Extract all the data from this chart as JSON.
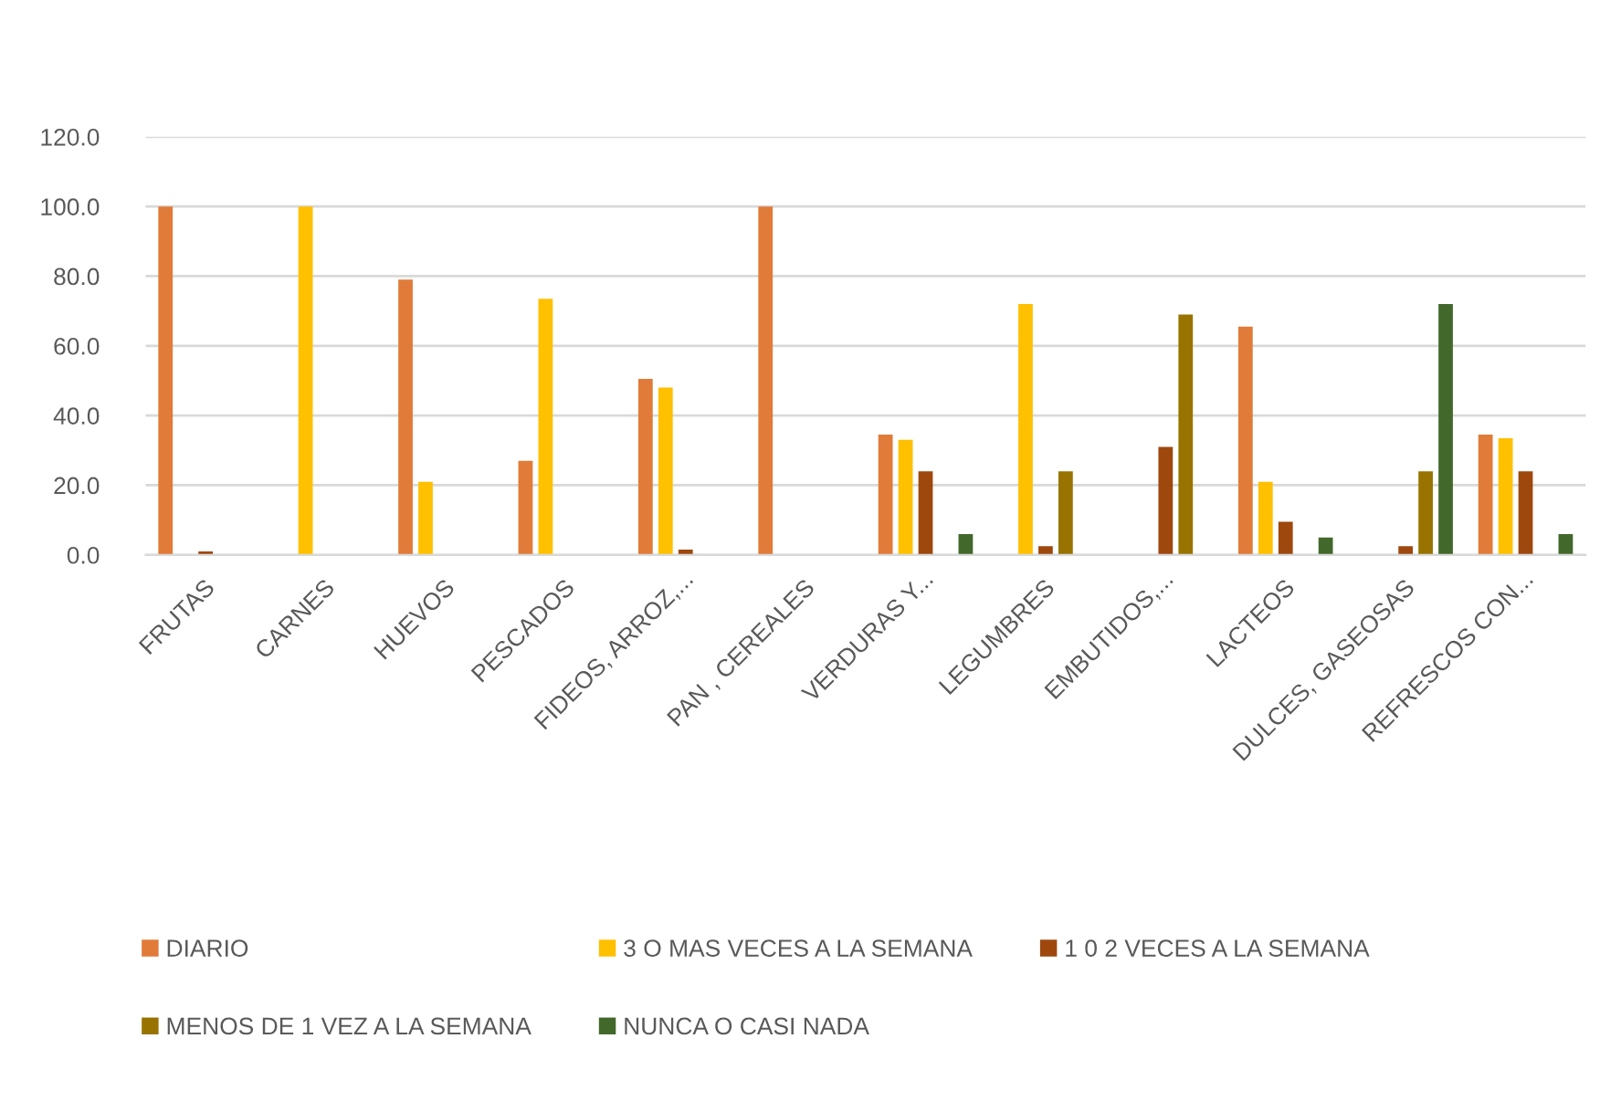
{
  "chart_data": {
    "type": "bar",
    "categories": [
      "FRUTAS",
      "CARNES",
      "HUEVOS",
      "PESCADOS",
      "FIDEOS, ARROZ,...",
      "PAN , CEREALES",
      "VERDURAS Y...",
      "LEGUMBRES",
      "EMBUTIDOS,...",
      "LACTEOS",
      "DULCES, GASEOSAS",
      "REFRESCOS CON..."
    ],
    "series": [
      {
        "name": "DIARIO",
        "color": "#e07b39",
        "values": [
          100,
          null,
          79,
          27,
          50.5,
          100,
          34.5,
          null,
          null,
          65.5,
          null,
          34.5
        ]
      },
      {
        "name": "3 O MAS VECES A LA SEMANA",
        "color": "#ffc000",
        "values": [
          null,
          100,
          21,
          73.5,
          48,
          null,
          33,
          72,
          null,
          21,
          null,
          33.5
        ]
      },
      {
        "name": "1 0 2 VECES A LA SEMANA",
        "color": "#9e480e",
        "values": [
          1,
          null,
          null,
          null,
          1.5,
          null,
          24,
          2.5,
          31,
          9.5,
          2.5,
          24
        ]
      },
      {
        "name": "MENOS DE 1 VEZ A LA SEMANA",
        "color": "#997300",
        "values": [
          null,
          null,
          null,
          null,
          null,
          null,
          null,
          24,
          69,
          null,
          24,
          null
        ]
      },
      {
        "name": "NUNCA O CASI NADA",
        "color": "#43682b",
        "values": [
          null,
          null,
          null,
          null,
          null,
          null,
          6,
          null,
          null,
          5,
          72,
          6
        ]
      }
    ],
    "ylim": [
      0,
      120
    ],
    "yticks": [
      {
        "value": 0,
        "label": "0.0"
      },
      {
        "value": 20,
        "label": "20.0"
      },
      {
        "value": 40,
        "label": "40.0"
      },
      {
        "value": 60,
        "label": "60.0"
      },
      {
        "value": 80,
        "label": "80.0"
      },
      {
        "value": 100,
        "label": "100.0"
      },
      {
        "value": 120,
        "label": "120.0"
      }
    ],
    "grid": "y",
    "legend": "bottom"
  }
}
